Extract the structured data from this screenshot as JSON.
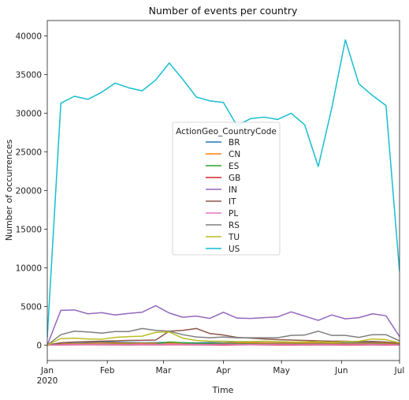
{
  "chart_data": {
    "type": "line",
    "title": "Number of events per country",
    "xlabel": "Time",
    "ylabel": "Number of occurrences",
    "x_start": "2020-01-01",
    "x_end": "2020-07-01",
    "x_ticks": [
      {
        "date": "2020-01-01",
        "label": "Jan",
        "sublabel": "2020"
      },
      {
        "date": "2020-02-01",
        "label": "Feb",
        "sublabel": ""
      },
      {
        "date": "2020-03-01",
        "label": "Mar",
        "sublabel": ""
      },
      {
        "date": "2020-04-01",
        "label": "Apr",
        "sublabel": ""
      },
      {
        "date": "2020-05-01",
        "label": "May",
        "sublabel": ""
      },
      {
        "date": "2020-06-01",
        "label": "Jun",
        "sublabel": ""
      },
      {
        "date": "2020-07-01",
        "label": "Jul",
        "sublabel": ""
      }
    ],
    "ylim": [
      -2000,
      42000
    ],
    "y_ticks": [
      0,
      5000,
      10000,
      15000,
      20000,
      25000,
      30000,
      35000,
      40000
    ],
    "grid": false,
    "legend": {
      "title": "ActionGeo_CountryCode",
      "placement": "center"
    },
    "x": [
      "2020-01-01",
      "2020-01-08",
      "2020-01-15",
      "2020-01-22",
      "2020-01-29",
      "2020-02-05",
      "2020-02-12",
      "2020-02-19",
      "2020-02-26",
      "2020-03-04",
      "2020-03-11",
      "2020-03-18",
      "2020-03-25",
      "2020-04-01",
      "2020-04-08",
      "2020-04-15",
      "2020-04-22",
      "2020-04-29",
      "2020-05-06",
      "2020-05-13",
      "2020-05-20",
      "2020-05-27",
      "2020-06-03",
      "2020-06-10",
      "2020-06-17",
      "2020-06-24",
      "2020-07-01"
    ],
    "series": [
      {
        "name": "BR",
        "color": "#1f77b4",
        "values": [
          0,
          280,
          350,
          380,
          420,
          380,
          340,
          300,
          320,
          350,
          300,
          280,
          320,
          300,
          340,
          320,
          300,
          280,
          300,
          320,
          280,
          260,
          300,
          320,
          340,
          300,
          200
        ]
      },
      {
        "name": "CN",
        "color": "#ff7f0e",
        "values": [
          0,
          150,
          180,
          220,
          260,
          280,
          250,
          230,
          240,
          260,
          220,
          200,
          210,
          230,
          260,
          280,
          270,
          250,
          230,
          260,
          240,
          220,
          210,
          230,
          250,
          230,
          150
        ]
      },
      {
        "name": "ES",
        "color": "#2ca02c",
        "values": [
          0,
          80,
          100,
          120,
          130,
          140,
          130,
          120,
          150,
          400,
          300,
          220,
          200,
          180,
          170,
          160,
          150,
          140,
          130,
          150,
          140,
          130,
          120,
          140,
          150,
          130,
          80
        ]
      },
      {
        "name": "GB",
        "color": "#d62728",
        "values": [
          0,
          20,
          40,
          60,
          50,
          40,
          30,
          50,
          40,
          60,
          50,
          40,
          30,
          20,
          40,
          50,
          40,
          30,
          20,
          30,
          40,
          30,
          20,
          30,
          40,
          20,
          10
        ]
      },
      {
        "name": "IN",
        "color": "#9467bd",
        "values": [
          0,
          4500,
          4550,
          4050,
          4200,
          3900,
          4100,
          4250,
          5100,
          4150,
          3600,
          3750,
          3450,
          4250,
          3500,
          3450,
          3550,
          3650,
          4300,
          3750,
          3200,
          3900,
          3400,
          3550,
          4050,
          3800,
          1100
        ]
      },
      {
        "name": "IT",
        "color": "#8c564b",
        "values": [
          0,
          300,
          400,
          450,
          500,
          550,
          600,
          620,
          650,
          1800,
          1900,
          2150,
          1500,
          1300,
          1000,
          900,
          800,
          700,
          650,
          600,
          550,
          500,
          500,
          450,
          480,
          400,
          250
        ]
      },
      {
        "name": "PL",
        "color": "#e377c2",
        "values": [
          0,
          60,
          80,
          90,
          100,
          90,
          80,
          100,
          90,
          120,
          100,
          90,
          80,
          100,
          90,
          80,
          90,
          100,
          80,
          90,
          100,
          80,
          90,
          100,
          90,
          80,
          40
        ]
      },
      {
        "name": "RS",
        "color": "#7f7f7f",
        "values": [
          0,
          1350,
          1800,
          1700,
          1550,
          1750,
          1750,
          2150,
          1900,
          1800,
          1350,
          1050,
          950,
          1050,
          950,
          950,
          950,
          950,
          1250,
          1300,
          1800,
          1250,
          1250,
          1000,
          1350,
          1350,
          550
        ]
      },
      {
        "name": "TU",
        "color": "#bcbd22",
        "values": [
          0,
          850,
          900,
          800,
          750,
          1000,
          1100,
          1150,
          1650,
          1700,
          900,
          600,
          500,
          500,
          450,
          450,
          500,
          450,
          400,
          400,
          450,
          350,
          450,
          500,
          800,
          700,
          300
        ]
      },
      {
        "name": "US",
        "color": "#17becf",
        "values": [
          1000,
          31300,
          32200,
          31800,
          32700,
          33900,
          33300,
          32900,
          34300,
          36500,
          34400,
          32100,
          31600,
          31400,
          28400,
          29300,
          29500,
          29200,
          30000,
          28500,
          23100,
          30700,
          39500,
          33800,
          32300,
          31000,
          9500
        ]
      }
    ]
  }
}
